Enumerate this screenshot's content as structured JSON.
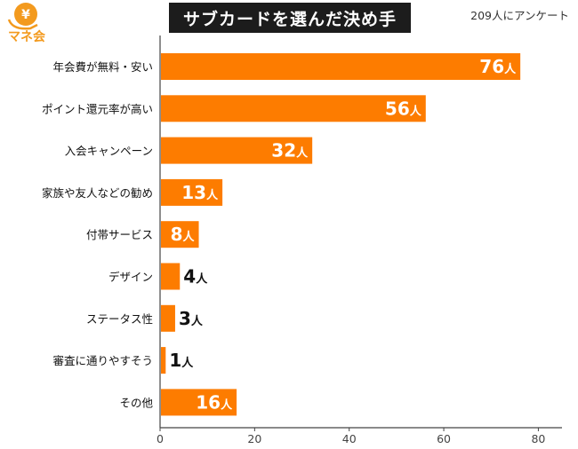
{
  "logo": {
    "icon": "yen-money-icon",
    "text": "マネ会",
    "color": "#f39a1e"
  },
  "header": {
    "title": "サブカードを選んだ決め手",
    "subtitle": "209人にアンケート"
  },
  "chart_data": {
    "type": "bar",
    "orientation": "horizontal",
    "categories": [
      "年会費が無料・安い",
      "ポイント還元率が高い",
      "入会キャンペーン",
      "家族や友人などの勧め",
      "付帯サービス",
      "デザイン",
      "ステータス性",
      "審査に通りやすそう",
      "その他"
    ],
    "values": [
      76,
      56,
      32,
      13,
      8,
      4,
      3,
      1,
      16
    ],
    "value_unit": "人",
    "xlim": [
      0,
      85
    ],
    "xticks": [
      0,
      20,
      40,
      60,
      80
    ],
    "grid": false,
    "bar_color": "#fd7c00",
    "inside_label_color": "#ffffff",
    "outside_label_color": "#111111"
  }
}
